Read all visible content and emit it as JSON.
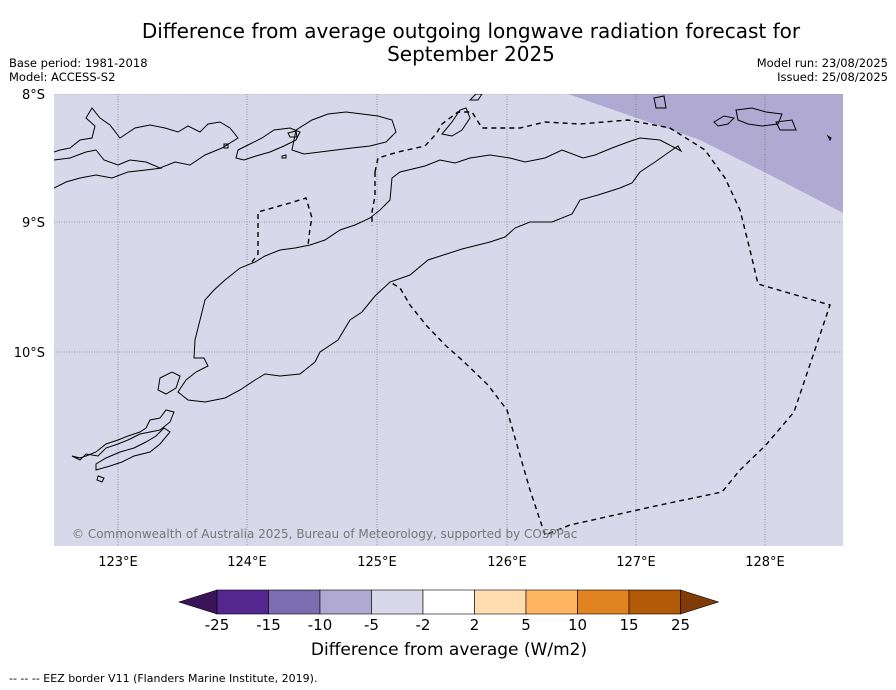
{
  "title": {
    "line1": "Difference from average outgoing longwave radiation forecast for",
    "line2": "September 2025"
  },
  "meta": {
    "base_period": "Base period: 1981-2018",
    "model": "Model: ACCESS-S2",
    "model_run": "Model run: 23/08/2025",
    "issued": "Issued: 25/08/2025"
  },
  "map": {
    "lat_labels": [
      "8°S",
      "9°S",
      "10°S"
    ],
    "lon_labels": [
      "123°E",
      "124°E",
      "125°E",
      "126°E",
      "127°E",
      "128°E"
    ],
    "base_color": "#d8d8ea",
    "anomaly_color": "#b0a9d2",
    "credit": "© Commonwealth of Australia 2025, Bureau of Meteorology, supported by COSPPac"
  },
  "colorbar": {
    "title": "Difference from average (W/m2)",
    "tick_labels": [
      "-25",
      "-15",
      "-10",
      "-5",
      "-2",
      "2",
      "5",
      "10",
      "15",
      "25"
    ],
    "colors": [
      "#3b1358",
      "#54278f",
      "#7b6db0",
      "#b0a9d2",
      "#d8d8ea",
      "#ffffff",
      "#ffddb0",
      "#fdb562",
      "#e08320",
      "#b35a08",
      "#7f3b08"
    ]
  },
  "footer": "--  --  -- EEZ border V11 (Flanders Marine Institute, 2019)."
}
